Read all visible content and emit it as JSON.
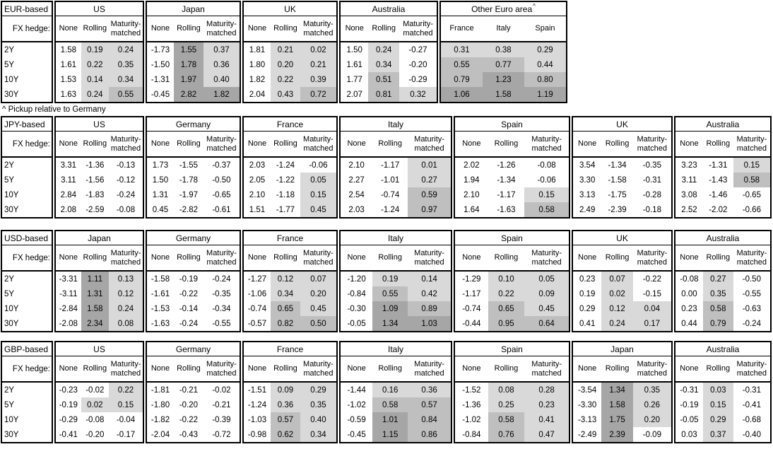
{
  "page": {
    "footnote": "^ Pickup relative to Germany"
  },
  "hedge_row_label": "FX hedge:",
  "hedge_headers": [
    "None",
    "Rolling",
    "Maturity-matched"
  ],
  "row_labels": [
    "2Y",
    "5Y",
    "10Y",
    "30Y"
  ],
  "shade_colors": {
    "light": "#d9d9d9",
    "medium": "#bfbfbf",
    "dark": "#a6a6a6"
  },
  "tables": [
    {
      "base_label": "EUR-based",
      "groups": [
        {
          "title": "US",
          "rows": [
            [
              "1.58",
              "0.19",
              "0.24"
            ],
            [
              "1.61",
              "0.22",
              "0.35"
            ],
            [
              "1.53",
              "0.14",
              "0.34"
            ],
            [
              "1.63",
              "0.24",
              "0.55"
            ]
          ]
        },
        {
          "title": "Japan",
          "rows": [
            [
              "-1.73",
              "1.55",
              "0.37"
            ],
            [
              "-1.50",
              "1.78",
              "0.36"
            ],
            [
              "-1.31",
              "1.97",
              "0.40"
            ],
            [
              "-0.45",
              "2.82",
              "1.82"
            ]
          ]
        },
        {
          "title": "UK",
          "rows": [
            [
              "1.81",
              "0.21",
              "0.02"
            ],
            [
              "1.80",
              "0.20",
              "0.21"
            ],
            [
              "1.82",
              "0.22",
              "0.39"
            ],
            [
              "2.04",
              "0.43",
              "0.72"
            ]
          ]
        },
        {
          "title": "Australia",
          "rows": [
            [
              "1.50",
              "0.24",
              "-0.27"
            ],
            [
              "1.61",
              "0.34",
              "-0.20"
            ],
            [
              "1.77",
              "0.51",
              "-0.29"
            ],
            [
              "2.07",
              "0.81",
              "0.32"
            ]
          ]
        },
        {
          "title": "Other Euro area",
          "superscript": "^",
          "headers": [
            "France",
            "Italy",
            "Spain"
          ],
          "shade_all": true,
          "rows": [
            [
              "0.31",
              "0.38",
              "0.29"
            ],
            [
              "0.55",
              "0.77",
              "0.44"
            ],
            [
              "0.79",
              "1.23",
              "0.80"
            ],
            [
              "1.06",
              "1.58",
              "1.19"
            ]
          ]
        }
      ]
    },
    {
      "base_label": "JPY-based",
      "groups": [
        {
          "title": "US",
          "rows": [
            [
              "3.31",
              "-1.36",
              "-0.13"
            ],
            [
              "3.11",
              "-1.56",
              "-0.12"
            ],
            [
              "2.84",
              "-1.83",
              "-0.24"
            ],
            [
              "2.08",
              "-2.59",
              "-0.08"
            ]
          ]
        },
        {
          "title": "Germany",
          "rows": [
            [
              "1.73",
              "-1.55",
              "-0.37"
            ],
            [
              "1.50",
              "-1.78",
              "-0.50"
            ],
            [
              "1.31",
              "-1.97",
              "-0.65"
            ],
            [
              "0.45",
              "-2.82",
              "-0.61"
            ]
          ]
        },
        {
          "title": "France",
          "rows": [
            [
              "2.03",
              "-1.24",
              "-0.06"
            ],
            [
              "2.05",
              "-1.22",
              "0.05"
            ],
            [
              "2.10",
              "-1.18",
              "0.15"
            ],
            [
              "1.51",
              "-1.77",
              "0.45"
            ]
          ]
        },
        {
          "title": "Italy",
          "rows": [
            [
              "2.10",
              "-1.17",
              "0.01"
            ],
            [
              "2.27",
              "-1.01",
              "0.27"
            ],
            [
              "2.54",
              "-0.74",
              "0.59"
            ],
            [
              "2.03",
              "-1.24",
              "0.97"
            ]
          ]
        },
        {
          "title": "Spain",
          "rows": [
            [
              "2.02",
              "-1.26",
              "-0.08"
            ],
            [
              "1.94",
              "-1.34",
              "-0.06"
            ],
            [
              "2.10",
              "-1.17",
              "0.15"
            ],
            [
              "1.64",
              "-1.63",
              "0.58"
            ]
          ]
        },
        {
          "title": "UK",
          "rows": [
            [
              "3.54",
              "-1.34",
              "-0.35"
            ],
            [
              "3.30",
              "-1.58",
              "-0.31"
            ],
            [
              "3.13",
              "-1.75",
              "-0.28"
            ],
            [
              "2.49",
              "-2.39",
              "-0.18"
            ]
          ]
        },
        {
          "title": "Australia",
          "rows": [
            [
              "3.23",
              "-1.31",
              "0.15"
            ],
            [
              "3.11",
              "-1.43",
              "0.58"
            ],
            [
              "3.08",
              "-1.46",
              "-0.65"
            ],
            [
              "2.52",
              "-2.02",
              "-0.66"
            ]
          ]
        }
      ]
    },
    {
      "base_label": "USD-based",
      "groups": [
        {
          "title": "Japan",
          "rows": [
            [
              "-3.31",
              "1.11",
              "0.13"
            ],
            [
              "-3.11",
              "1.31",
              "0.12"
            ],
            [
              "-2.84",
              "1.58",
              "0.24"
            ],
            [
              "-2.08",
              "2.34",
              "0.08"
            ]
          ]
        },
        {
          "title": "Germany",
          "rows": [
            [
              "-1.58",
              "-0.19",
              "-0.24"
            ],
            [
              "-1.61",
              "-0.22",
              "-0.35"
            ],
            [
              "-1.53",
              "-0.14",
              "-0.34"
            ],
            [
              "-1.63",
              "-0.24",
              "-0.55"
            ]
          ]
        },
        {
          "title": "France",
          "rows": [
            [
              "-1.27",
              "0.12",
              "0.07"
            ],
            [
              "-1.06",
              "0.34",
              "0.20"
            ],
            [
              "-0.74",
              "0.65",
              "0.45"
            ],
            [
              "-0.57",
              "0.82",
              "0.50"
            ]
          ]
        },
        {
          "title": "Italy",
          "rows": [
            [
              "-1.20",
              "0.19",
              "0.14"
            ],
            [
              "-0.84",
              "0.55",
              "0.42"
            ],
            [
              "-0.30",
              "1.09",
              "0.89"
            ],
            [
              "-0.05",
              "1.34",
              "1.03"
            ]
          ]
        },
        {
          "title": "Spain",
          "rows": [
            [
              "-1.29",
              "0.10",
              "0.05"
            ],
            [
              "-1.17",
              "0.22",
              "0.09"
            ],
            [
              "-0.74",
              "0.65",
              "0.45"
            ],
            [
              "-0.44",
              "0.95",
              "0.64"
            ]
          ]
        },
        {
          "title": "UK",
          "rows": [
            [
              "0.23",
              "0.07",
              "-0.22"
            ],
            [
              "0.19",
              "0.02",
              "-0.15"
            ],
            [
              "0.29",
              "0.12",
              "0.04"
            ],
            [
              "0.41",
              "0.24",
              "0.17"
            ]
          ]
        },
        {
          "title": "Australia",
          "rows": [
            [
              "-0.08",
              "0.27",
              "-0.50"
            ],
            [
              "0.00",
              "0.35",
              "-0.55"
            ],
            [
              "0.23",
              "0.58",
              "-0.63"
            ],
            [
              "0.44",
              "0.79",
              "-0.24"
            ]
          ]
        }
      ]
    },
    {
      "base_label": "GBP-based",
      "groups": [
        {
          "title": "US",
          "rows": [
            [
              "-0.23",
              "-0.02",
              "0.22"
            ],
            [
              "-0.19",
              "0.02",
              "0.15"
            ],
            [
              "-0.29",
              "-0.08",
              "-0.04"
            ],
            [
              "-0.41",
              "-0.20",
              "-0.17"
            ]
          ]
        },
        {
          "title": "Germany",
          "rows": [
            [
              "-1.81",
              "-0.21",
              "-0.02"
            ],
            [
              "-1.80",
              "-0.20",
              "-0.21"
            ],
            [
              "-1.82",
              "-0.22",
              "-0.39"
            ],
            [
              "-2.04",
              "-0.43",
              "-0.72"
            ]
          ]
        },
        {
          "title": "France",
          "rows": [
            [
              "-1.51",
              "0.09",
              "0.29"
            ],
            [
              "-1.24",
              "0.36",
              "0.35"
            ],
            [
              "-1.03",
              "0.57",
              "0.40"
            ],
            [
              "-0.98",
              "0.62",
              "0.34"
            ]
          ]
        },
        {
          "title": "Italy",
          "rows": [
            [
              "-1.44",
              "0.16",
              "0.36"
            ],
            [
              "-1.02",
              "0.58",
              "0.57"
            ],
            [
              "-0.59",
              "1.01",
              "0.84"
            ],
            [
              "-0.45",
              "1.15",
              "0.86"
            ]
          ]
        },
        {
          "title": "Spain",
          "rows": [
            [
              "-1.52",
              "0.08",
              "0.28"
            ],
            [
              "-1.36",
              "0.25",
              "0.23"
            ],
            [
              "-1.02",
              "0.58",
              "0.41"
            ],
            [
              "-0.84",
              "0.76",
              "0.47"
            ]
          ]
        },
        {
          "title": "Japan",
          "rows": [
            [
              "-3.54",
              "1.34",
              "0.35"
            ],
            [
              "-3.30",
              "1.58",
              "0.26"
            ],
            [
              "-3.13",
              "1.75",
              "0.20"
            ],
            [
              "-2.49",
              "2.39",
              "-0.09"
            ]
          ]
        },
        {
          "title": "Australia",
          "rows": [
            [
              "-0.31",
              "0.03",
              "-0.31"
            ],
            [
              "-0.19",
              "0.15",
              "-0.41"
            ],
            [
              "-0.05",
              "0.29",
              "-0.68"
            ],
            [
              "0.03",
              "0.37",
              "-0.40"
            ]
          ]
        }
      ]
    }
  ]
}
